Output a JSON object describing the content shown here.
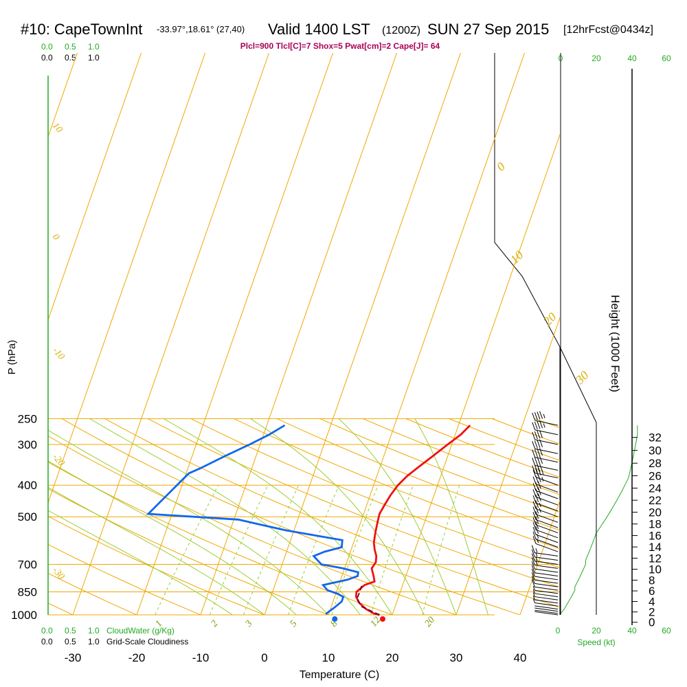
{
  "header": {
    "station": "#10: CapeTownInt",
    "coords": "-33.97°,18.61° (27,40)",
    "valid": "Valid 1400 LST",
    "zulu": "(1200Z)",
    "date": "SUN 27 Sep 2015",
    "forecast": "[12hrFcst@0434z]"
  },
  "params_line": "Plcl=900 Tlcl[C]=7 Shox=5 Pwat[cm]=2 Cape[J]= 64",
  "scales": {
    "top_green": [
      "0.0",
      "0.5",
      "1.0"
    ],
    "top_black": [
      "0.0",
      "0.5",
      "1.0"
    ],
    "bottom_green": [
      "0.0",
      "0.5",
      "1.0"
    ],
    "bottom_green_label": "CloudWater (g/Kg)",
    "bottom_black": [
      "0.0",
      "0.5",
      "1.0"
    ],
    "bottom_black_label": "Grid-Scale Cloudiness",
    "speed_ticks": [
      "0",
      "20",
      "40",
      "60"
    ],
    "speed_label": "Speed (kt)"
  },
  "chart_data": {
    "type": "line",
    "xlabel": "Temperature (C)",
    "ylabel": "P (hPa)",
    "y2label": "Height (1000 Feet)",
    "x_ticks": [
      -30,
      -20,
      -10,
      0,
      10,
      20,
      30,
      40
    ],
    "p_ticks": [
      250,
      300,
      400,
      500,
      700,
      850,
      1000
    ],
    "height_ticks": [
      0,
      2,
      4,
      6,
      8,
      10,
      12,
      14,
      16,
      18,
      20,
      22,
      24,
      26,
      28,
      30,
      32
    ],
    "xlim": [
      -34,
      36
    ],
    "plim": [
      250,
      1000
    ],
    "isotherm_labels": [
      "10",
      "0",
      "-10",
      "-20",
      "-30"
    ],
    "dry_adiabat_labels": [
      "0",
      "10",
      "20",
      "30"
    ],
    "mixing_ratio_labels": [
      "1",
      "2",
      "3",
      "5",
      "8",
      "12",
      "20"
    ],
    "series": [
      {
        "kind": "temperature",
        "color": "#ee1111",
        "points": [
          [
            2.5,
            262
          ],
          [
            2.5,
            280
          ],
          [
            2.0,
            300
          ],
          [
            1.5,
            325
          ],
          [
            1.0,
            350
          ],
          [
            0.6,
            375
          ],
          [
            0.6,
            400
          ],
          [
            1.0,
            430
          ],
          [
            1.6,
            460
          ],
          [
            2.2,
            490
          ],
          [
            3.2,
            520
          ],
          [
            4.5,
            560
          ],
          [
            5.8,
            600
          ],
          [
            7.0,
            630
          ],
          [
            8.3,
            660
          ],
          [
            9.2,
            690
          ],
          [
            9.5,
            720
          ],
          [
            11.0,
            760
          ],
          [
            12.0,
            790
          ],
          [
            11.0,
            810
          ],
          [
            10.8,
            850
          ],
          [
            11.5,
            880
          ],
          [
            13.0,
            920
          ],
          [
            15.0,
            960
          ],
          [
            17.0,
            992
          ],
          [
            18.0,
            1000
          ]
        ]
      },
      {
        "kind": "dewpoint",
        "color": "#1166ee",
        "points": [
          [
            -26.5,
            262
          ],
          [
            -27.5,
            280
          ],
          [
            -29.0,
            300
          ],
          [
            -31.0,
            325
          ],
          [
            -33.0,
            355
          ],
          [
            -34.0,
            368
          ],
          [
            -34.0,
            490
          ],
          [
            -19.0,
            510
          ],
          [
            -10.0,
            550
          ],
          [
            0.5,
            590
          ],
          [
            1.5,
            620
          ],
          [
            -0.5,
            640
          ],
          [
            -1.5,
            660
          ],
          [
            1.0,
            700
          ],
          [
            5.0,
            720
          ],
          [
            8.0,
            740
          ],
          [
            8.5,
            760
          ],
          [
            7.5,
            780
          ],
          [
            5.5,
            800
          ],
          [
            4.5,
            810
          ],
          [
            6.0,
            840
          ],
          [
            8.0,
            860
          ],
          [
            9.5,
            880
          ],
          [
            10.0,
            910
          ],
          [
            9.8,
            950
          ],
          [
            9.5,
            985
          ],
          [
            9.5,
            995
          ]
        ]
      },
      {
        "kind": "parcel",
        "color": "#660033",
        "points": [
          [
            18.0,
            1000
          ],
          [
            14.0,
            945
          ],
          [
            12.0,
            895
          ],
          [
            11.3,
            850
          ],
          [
            10.6,
            810
          ]
        ]
      }
    ],
    "wind_speed_kt": [
      [
        0,
        1000
      ],
      [
        0,
        990
      ],
      [
        1,
        975
      ],
      [
        2,
        960
      ],
      [
        3,
        940
      ],
      [
        4,
        920
      ],
      [
        5,
        900
      ],
      [
        6,
        880
      ],
      [
        7,
        860
      ],
      [
        8,
        840
      ],
      [
        8,
        820
      ],
      [
        9,
        800
      ],
      [
        10,
        780
      ],
      [
        11,
        760
      ],
      [
        12,
        740
      ],
      [
        13,
        720
      ],
      [
        14,
        700
      ],
      [
        14,
        680
      ],
      [
        15,
        660
      ],
      [
        16,
        640
      ],
      [
        17,
        620
      ],
      [
        18,
        600
      ],
      [
        19,
        580
      ],
      [
        20,
        560
      ],
      [
        22,
        540
      ],
      [
        24,
        520
      ],
      [
        26,
        500
      ],
      [
        28,
        480
      ],
      [
        30,
        460
      ],
      [
        32,
        440
      ],
      [
        34,
        420
      ],
      [
        36,
        400
      ],
      [
        38,
        380
      ],
      [
        39,
        360
      ],
      [
        40,
        340
      ],
      [
        41,
        320
      ],
      [
        42,
        300
      ],
      [
        43,
        280
      ],
      [
        43,
        262
      ]
    ],
    "surface_temp": 18.5,
    "surface_dewpoint": 11.0
  }
}
